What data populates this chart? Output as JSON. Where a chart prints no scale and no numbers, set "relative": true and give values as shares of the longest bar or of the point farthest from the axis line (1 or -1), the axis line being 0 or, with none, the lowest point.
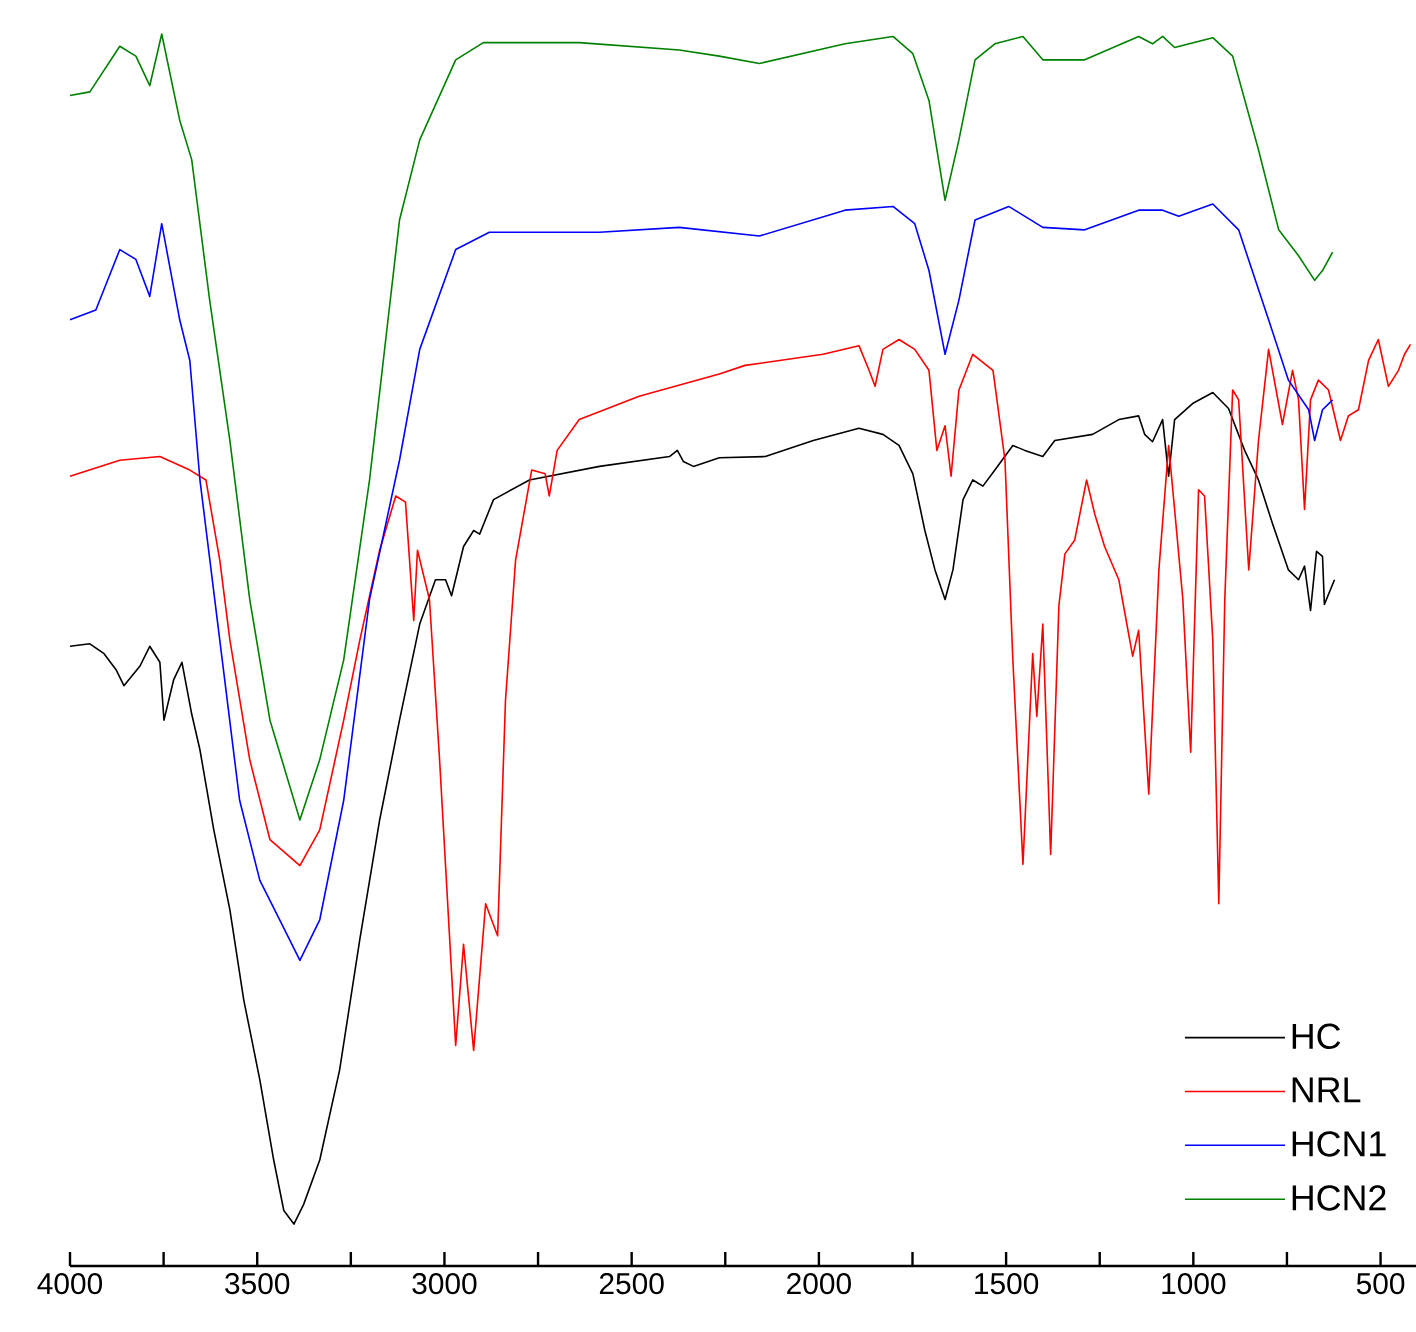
{
  "chart_data": {
    "type": "line",
    "relative": true,
    "legend": "bottom right",
    "xlim": [
      4000,
      400
    ],
    "xticks": [
      4000,
      {
        "value": 3750,
        "label": null
      },
      3500,
      {
        "value": 3250,
        "label": null
      },
      3000,
      {
        "value": 2750,
        "label": null
      },
      2500,
      {
        "value": 2250,
        "label": null
      },
      2000,
      {
        "value": 1750,
        "label": null
      },
      1500,
      {
        "value": 1250,
        "label": null
      },
      1000,
      {
        "value": 750,
        "label": null
      },
      500
    ],
    "series": [
      {
        "name": "HC",
        "color": "#000000",
        "x": [
          4000,
          3947,
          3909,
          3877,
          3856,
          3813,
          3787,
          3760,
          3749,
          3723,
          3701,
          3675,
          3653,
          3616,
          3573,
          3536,
          3493,
          3456,
          3429,
          3402,
          3376,
          3333,
          3280,
          3226,
          3173,
          3120,
          3066,
          3024,
          2997,
          2981,
          2949,
          2922,
          2906,
          2869,
          2773,
          2586,
          2399,
          2378,
          2362,
          2335,
          2266,
          2143,
          2015,
          1893,
          1829,
          1786,
          1749,
          1717,
          1690,
          1663,
          1642,
          1615,
          1589,
          1562,
          1530,
          1482,
          1450,
          1402,
          1370,
          1269,
          1199,
          1146,
          1130,
          1109,
          1082,
          1066,
          1050,
          1002,
          948,
          906,
          863,
          826,
          788,
          746,
          719,
          703,
          687,
          671,
          655,
          650,
          623
        ],
        "values": [
          0.503,
          0.505,
          0.497,
          0.484,
          0.471,
          0.487,
          0.503,
          0.49,
          0.443,
          0.476,
          0.49,
          0.448,
          0.419,
          0.354,
          0.289,
          0.216,
          0.151,
          0.086,
          0.045,
          0.034,
          0.05,
          0.086,
          0.159,
          0.265,
          0.362,
          0.443,
          0.521,
          0.557,
          0.557,
          0.544,
          0.584,
          0.597,
          0.594,
          0.622,
          0.638,
          0.649,
          0.657,
          0.662,
          0.653,
          0.649,
          0.656,
          0.657,
          0.67,
          0.68,
          0.675,
          0.666,
          0.643,
          0.597,
          0.565,
          0.541,
          0.565,
          0.622,
          0.638,
          0.633,
          0.646,
          0.666,
          0.662,
          0.657,
          0.67,
          0.675,
          0.687,
          0.69,
          0.675,
          0.669,
          0.687,
          0.641,
          0.687,
          0.7,
          0.709,
          0.696,
          0.662,
          0.638,
          0.602,
          0.565,
          0.557,
          0.568,
          0.532,
          0.58,
          0.576,
          0.537,
          0.557
        ]
      },
      {
        "name": "NRL",
        "color": "#ff0000",
        "x": [
          4000,
          3867,
          3760,
          3680,
          3637,
          3600,
          3573,
          3520,
          3466,
          3386,
          3333,
          3269,
          3226,
          3173,
          3130,
          3104,
          3082,
          3072,
          3040,
          3013,
          2970,
          2949,
          2922,
          2890,
          2858,
          2837,
          2810,
          2767,
          2731,
          2720,
          2699,
          2640,
          2480,
          2266,
          2197,
          1989,
          1893,
          1866,
          1850,
          1829,
          1786,
          1744,
          1706,
          1685,
          1663,
          1647,
          1626,
          1589,
          1535,
          1503,
          1482,
          1455,
          1429,
          1418,
          1402,
          1381,
          1359,
          1343,
          1317,
          1285,
          1263,
          1237,
          1199,
          1162,
          1146,
          1119,
          1092,
          1066,
          1050,
          1028,
          1007,
          986,
          970,
          948,
          932,
          916,
          895,
          879,
          852,
          826,
          799,
          762,
          735,
          719,
          703,
          687,
          666,
          639,
          607,
          586,
          559,
          532,
          506,
          479,
          452,
          436,
          420
        ],
        "values": [
          0.641,
          0.654,
          0.657,
          0.646,
          0.638,
          0.573,
          0.508,
          0.411,
          0.346,
          0.325,
          0.354,
          0.443,
          0.508,
          0.581,
          0.625,
          0.62,
          0.524,
          0.581,
          0.541,
          0.411,
          0.179,
          0.261,
          0.175,
          0.294,
          0.268,
          0.459,
          0.573,
          0.646,
          0.643,
          0.625,
          0.662,
          0.687,
          0.706,
          0.724,
          0.731,
          0.74,
          0.747,
          0.727,
          0.714,
          0.744,
          0.752,
          0.744,
          0.727,
          0.662,
          0.682,
          0.641,
          0.711,
          0.74,
          0.727,
          0.654,
          0.492,
          0.326,
          0.497,
          0.446,
          0.521,
          0.334,
          0.536,
          0.578,
          0.589,
          0.638,
          0.61,
          0.584,
          0.557,
          0.495,
          0.516,
          0.383,
          0.565,
          0.666,
          0.614,
          0.541,
          0.417,
          0.63,
          0.625,
          0.508,
          0.294,
          0.541,
          0.711,
          0.703,
          0.565,
          0.67,
          0.744,
          0.683,
          0.727,
          0.703,
          0.614,
          0.703,
          0.719,
          0.711,
          0.67,
          0.69,
          0.695,
          0.735,
          0.752,
          0.714,
          0.727,
          0.74,
          0.748
        ]
      },
      {
        "name": "HCN1",
        "color": "#0000ff",
        "x": [
          4000,
          3931,
          3867,
          3824,
          3787,
          3755,
          3707,
          3680,
          3653,
          3600,
          3547,
          3493,
          3440,
          3386,
          3333,
          3269,
          3200,
          3120,
          3066,
          2970,
          2880,
          2586,
          2373,
          2159,
          1930,
          1802,
          1744,
          1706,
          1663,
          1626,
          1583,
          1493,
          1402,
          1290,
          1146,
          1082,
          1039,
          948,
          879,
          799,
          746,
          692,
          676,
          655,
          628
        ],
        "values": [
          0.768,
          0.776,
          0.825,
          0.817,
          0.787,
          0.846,
          0.768,
          0.735,
          0.638,
          0.508,
          0.378,
          0.313,
          0.281,
          0.248,
          0.281,
          0.378,
          0.541,
          0.654,
          0.744,
          0.825,
          0.839,
          0.839,
          0.843,
          0.836,
          0.857,
          0.86,
          0.846,
          0.808,
          0.74,
          0.784,
          0.849,
          0.86,
          0.843,
          0.841,
          0.857,
          0.857,
          0.852,
          0.862,
          0.841,
          0.768,
          0.719,
          0.695,
          0.67,
          0.695,
          0.703
        ]
      },
      {
        "name": "HCN2",
        "color": "#008000",
        "x": [
          4000,
          3947,
          3867,
          3824,
          3787,
          3755,
          3707,
          3675,
          3627,
          3573,
          3520,
          3466,
          3386,
          3333,
          3269,
          3200,
          3120,
          3066,
          2970,
          2896,
          2640,
          2373,
          2266,
          2159,
          1930,
          1802,
          1749,
          1706,
          1663,
          1626,
          1583,
          1530,
          1455,
          1402,
          1290,
          1146,
          1109,
          1082,
          1050,
          948,
          895,
          826,
          772,
          719,
          676,
          655,
          628
        ],
        "values": [
          0.95,
          0.953,
          0.99,
          0.982,
          0.958,
          1.0,
          0.93,
          0.898,
          0.784,
          0.67,
          0.541,
          0.443,
          0.362,
          0.411,
          0.492,
          0.638,
          0.849,
          0.914,
          0.979,
          0.993,
          0.993,
          0.987,
          0.982,
          0.976,
          0.992,
          0.998,
          0.984,
          0.946,
          0.865,
          0.914,
          0.979,
          0.992,
          0.998,
          0.979,
          0.979,
          0.998,
          0.992,
          0.998,
          0.989,
          0.997,
          0.982,
          0.906,
          0.841,
          0.82,
          0.8,
          0.808,
          0.823
        ]
      }
    ]
  }
}
